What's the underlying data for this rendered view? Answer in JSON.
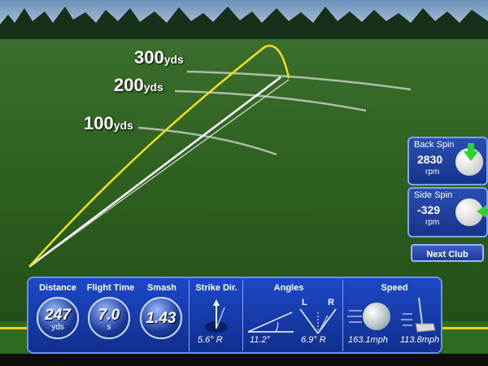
{
  "range_labels": [
    {
      "number": "300",
      "unit": "yds"
    },
    {
      "number": "200",
      "unit": "yds"
    },
    {
      "number": "100",
      "unit": "yds"
    }
  ],
  "side_panel": {
    "back_spin": {
      "title": "Back Spin",
      "value": "2830",
      "unit": "rpm"
    },
    "side_spin": {
      "title": "Side Spin",
      "value": "-329",
      "unit": "rpm"
    },
    "next_club_label": "Next Club"
  },
  "stats": {
    "distance": {
      "label": "Distance",
      "value": "247",
      "unit": "yds"
    },
    "flight_time": {
      "label": "Flight Time",
      "value": "7.0",
      "unit": "s"
    },
    "smash": {
      "label": "Smash",
      "value": "1.43"
    },
    "strike_dir": {
      "label": "Strike Dir.",
      "value": "5.6° R"
    },
    "angles": {
      "label": "Angles",
      "launch": "11.2°",
      "side": "6.9° R",
      "left": "L",
      "right": "R"
    },
    "speed": {
      "label": "Speed",
      "ball": "163.1mph",
      "club": "113.8mph"
    }
  },
  "colors": {
    "panel_blue": "#1d49c8",
    "trace_yellow": "#f0e020",
    "spin_arrow": "#2bd32b"
  }
}
